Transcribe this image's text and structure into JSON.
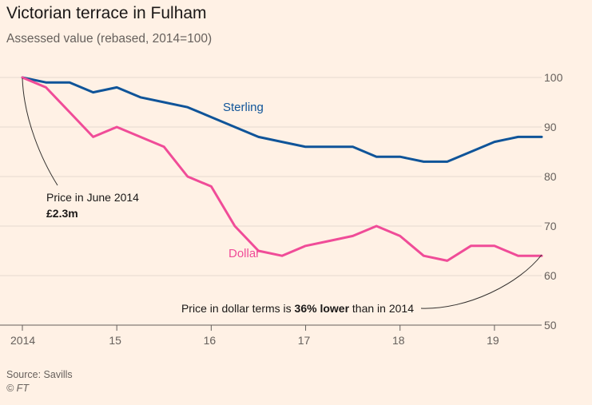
{
  "title": "Victorian terrace in Fulham",
  "subtitle": "Assessed value (rebased, 2014=100)",
  "source": "Source: Savills",
  "credit": "© FT",
  "colors": {
    "background": "#fff1e5",
    "sterling": "#0f5499",
    "dollar": "#f04c98",
    "grid": "#e6d9ce",
    "axis": "#66605c",
    "annotation": "#33302e"
  },
  "annotations": {
    "start_line1": "Price in June 2014",
    "start_line2": "£2.3m",
    "end_prefix": "Price in dollar terms is ",
    "end_bold": "36% lower",
    "end_suffix": " than in 2014"
  },
  "chart_data": {
    "type": "line",
    "xlim": [
      2014.0,
      2019.5
    ],
    "ylim": [
      50,
      100
    ],
    "x_ticks": [
      {
        "value": 2014,
        "label": "2014"
      },
      {
        "value": 2015,
        "label": "15"
      },
      {
        "value": 2016,
        "label": "16"
      },
      {
        "value": 2017,
        "label": "17"
      },
      {
        "value": 2018,
        "label": "18"
      },
      {
        "value": 2019,
        "label": "19"
      }
    ],
    "y_ticks": [
      50,
      60,
      70,
      80,
      90,
      100
    ],
    "grid": true,
    "y_axis_side": "right",
    "series": [
      {
        "name": "Sterling",
        "color": "#0f5499",
        "x": [
          2014.0,
          2014.25,
          2014.5,
          2014.75,
          2015.0,
          2015.25,
          2015.5,
          2015.75,
          2016.0,
          2016.25,
          2016.5,
          2016.75,
          2017.0,
          2017.25,
          2017.5,
          2017.75,
          2018.0,
          2018.25,
          2018.5,
          2018.75,
          2019.0,
          2019.25,
          2019.5
        ],
        "values": [
          100,
          99,
          99,
          97,
          98,
          96,
          95,
          94,
          92,
          90,
          88,
          87,
          86,
          86,
          86,
          84,
          84,
          83,
          83,
          85,
          87,
          88,
          88
        ]
      },
      {
        "name": "Dollar",
        "color": "#f04c98",
        "x": [
          2014.0,
          2014.25,
          2014.5,
          2014.75,
          2015.0,
          2015.25,
          2015.5,
          2015.75,
          2016.0,
          2016.25,
          2016.5,
          2016.75,
          2017.0,
          2017.25,
          2017.5,
          2017.75,
          2018.0,
          2018.25,
          2018.5,
          2018.75,
          2019.0,
          2019.25,
          2019.5
        ],
        "values": [
          100,
          98,
          93,
          88,
          90,
          88,
          86,
          80,
          78,
          70,
          65,
          64,
          66,
          67,
          68,
          70,
          68,
          64,
          63,
          66,
          66,
          64,
          64
        ]
      }
    ]
  }
}
